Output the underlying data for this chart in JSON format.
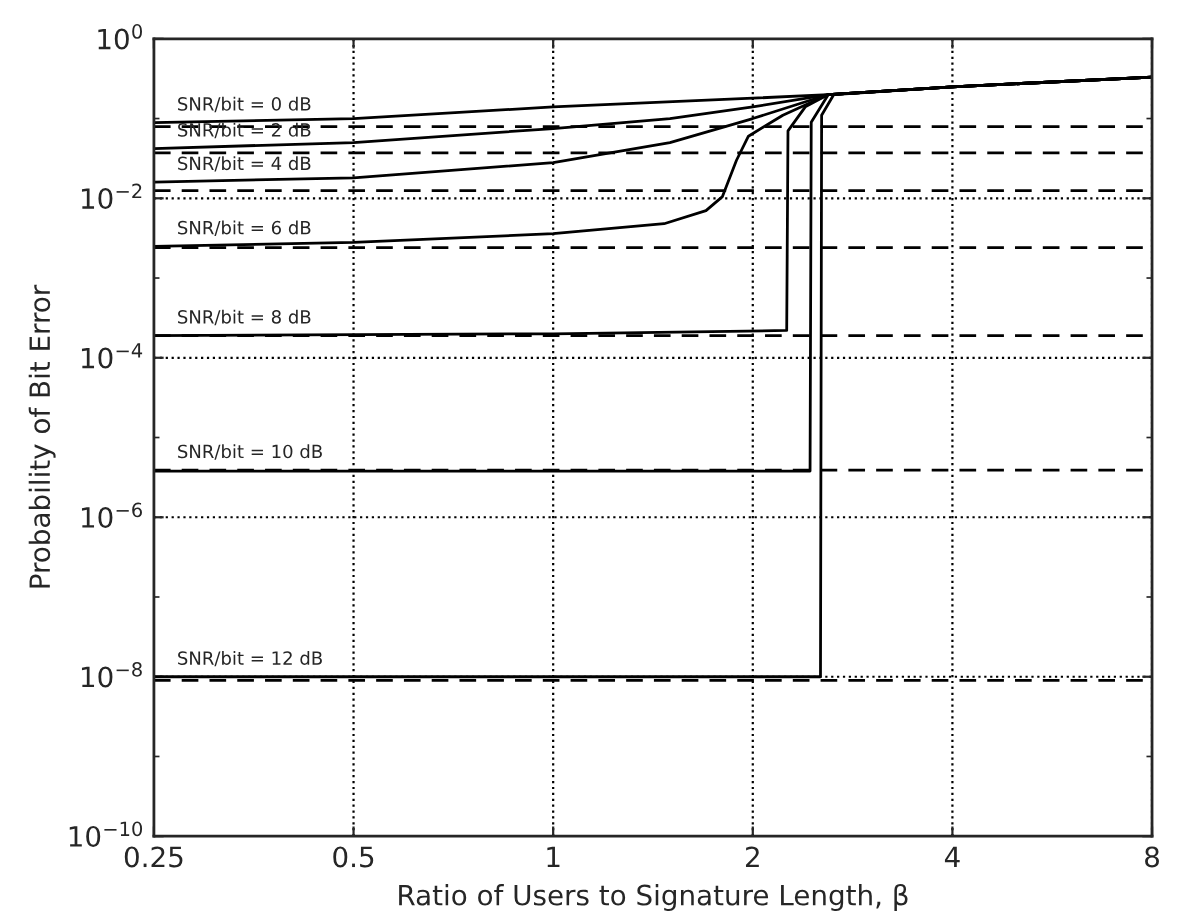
{
  "chart_data": {
    "type": "line",
    "xlabel": "Ratio of Users to Signature Length, β",
    "ylabel": "Probability of Bit Error",
    "log": "xy",
    "grid": true,
    "line_style": "solid",
    "marker": "none",
    "xlim": [
      0.25,
      8
    ],
    "xticks": [
      0.25,
      0.5,
      1,
      2,
      4,
      8
    ],
    "ylim": [
      1e-10,
      1
    ],
    "yticks": [
      {
        "value": 1e-10,
        "label": "10$^{−10}$"
      },
      {
        "value": 1e-09,
        "label": null
      },
      {
        "value": 1e-08,
        "label": "10$^{−8}$"
      },
      {
        "value": 1e-07,
        "label": null
      },
      {
        "value": 1e-06,
        "label": "10$^{−6}$"
      },
      {
        "value": 1e-05,
        "label": null
      },
      {
        "value": 0.0001,
        "label": "10$^{−4}$"
      },
      {
        "value": 0.001,
        "label": null
      },
      {
        "value": 0.01,
        "label": "10$^{−2}$"
      },
      {
        "value": 0.1,
        "label": null
      },
      {
        "value": 1,
        "label": "10$^{0}$"
      }
    ],
    "series": [
      {
        "color": "#000000",
        "x": [
          0.25,
          0.5,
          1,
          2,
          2.6,
          4,
          8
        ],
        "values": [
          0.089,
          0.1,
          0.14,
          0.18,
          0.2,
          0.25,
          0.33
        ]
      },
      {
        "color": "#000000",
        "x": [
          0.25,
          0.5,
          1,
          1.5,
          2,
          2.6,
          4,
          8
        ],
        "values": [
          0.042,
          0.05,
          0.075,
          0.1,
          0.14,
          0.2,
          0.25,
          0.33
        ]
      },
      {
        "color": "#000000",
        "x": [
          0.25,
          0.5,
          1,
          1.5,
          2,
          2.6,
          4,
          8
        ],
        "values": [
          0.016,
          0.018,
          0.028,
          0.05,
          0.1,
          0.2,
          0.25,
          0.33
        ]
      },
      {
        "color": "#000000",
        "x": [
          0.25,
          0.5,
          1,
          1.47,
          1.7,
          1.8,
          1.89,
          1.97,
          2.22,
          2.6,
          4,
          8
        ],
        "values": [
          0.0025,
          0.0028,
          0.0036,
          0.0048,
          0.007,
          0.0105,
          0.03,
          0.06,
          0.11,
          0.2,
          0.25,
          0.33
        ]
      },
      {
        "color": "#000000",
        "x": [
          0.25,
          1,
          2.25,
          2.26,
          2.4,
          2.6,
          4,
          8
        ],
        "values": [
          0.00019,
          0.0002,
          0.00022,
          0.07,
          0.14,
          0.2,
          0.25,
          0.33
        ]
      },
      {
        "color": "#000000",
        "x": [
          0.25,
          2.44,
          2.45,
          2.6,
          4,
          8
        ],
        "values": [
          3.8e-06,
          3.8e-06,
          0.09,
          0.2,
          0.25,
          0.33
        ]
      },
      {
        "color": "#000000",
        "x": [
          0.25,
          2.53,
          2.54,
          2.65,
          4,
          8
        ],
        "values": [
          1e-08,
          1e-08,
          0.11,
          0.2,
          0.25,
          0.33
        ]
      },
      {
        "color": "#000000",
        "line_style": "dashed",
        "x": [
          0.25,
          8
        ],
        "values": [
          0.079,
          0.079
        ]
      },
      {
        "color": "#000000",
        "line_style": "dashed",
        "x": [
          0.25,
          8
        ],
        "values": [
          0.037,
          0.037
        ]
      },
      {
        "color": "#000000",
        "line_style": "dashed",
        "x": [
          0.25,
          8
        ],
        "values": [
          0.0125,
          0.0125
        ]
      },
      {
        "color": "#000000",
        "line_style": "dashed",
        "x": [
          0.25,
          8
        ],
        "values": [
          0.0024,
          0.0024
        ]
      },
      {
        "color": "#000000",
        "line_style": "dashed",
        "x": [
          0.25,
          8
        ],
        "values": [
          0.00019,
          0.00019
        ]
      },
      {
        "color": "#000000",
        "line_style": "dashed",
        "x": [
          0.25,
          8
        ],
        "values": [
          3.9e-06,
          3.9e-06
        ]
      },
      {
        "color": "#000000",
        "line_style": "dashed",
        "x": [
          0.25,
          8
        ],
        "values": [
          9e-09,
          9e-09
        ]
      }
    ],
    "annotations": [
      {
        "text": "SNR/bit = 0 dB",
        "y": 0.089
      },
      {
        "text": "SNR/bit = 2 dB",
        "y": 0.042
      },
      {
        "text": "SNR/bit = 4 dB",
        "y": 0.016
      },
      {
        "text": "SNR/bit = 6 dB",
        "y": 0.0025
      },
      {
        "text": "SNR/bit = 8 dB",
        "y": 0.00019
      },
      {
        "text": "SNR/bit = 10 dB",
        "y": 3.9e-06
      },
      {
        "text": "SNR/bit = 12 dB",
        "y": 1e-08
      }
    ]
  }
}
